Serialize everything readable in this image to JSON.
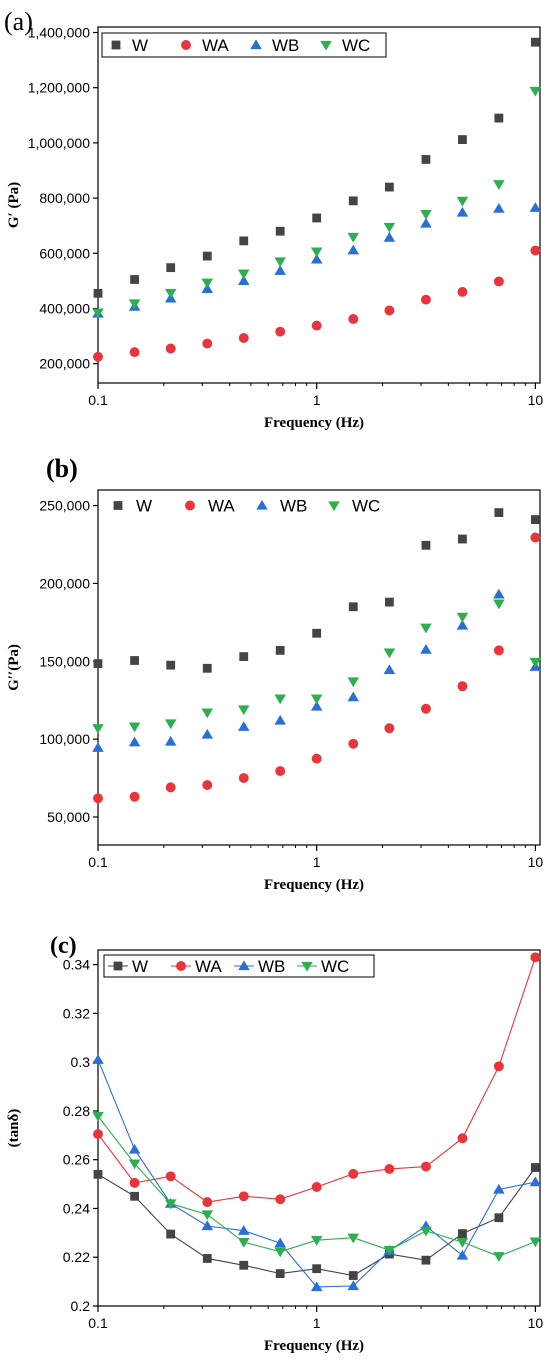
{
  "chart_data": [
    {
      "type": "scatter",
      "panel_label": "(a)",
      "xlabel": "Frequency (Hz)",
      "ylabel": "G′ (Pa)",
      "xscale": "log",
      "xlim": [
        0.1,
        10.5
      ],
      "ylim": [
        130000,
        1420000
      ],
      "xticks": [
        {
          "value": 0.1,
          "label": "0.1"
        },
        {
          "value": 1,
          "label": "1"
        },
        {
          "value": 10,
          "label": "10"
        }
      ],
      "yticks": [
        {
          "value": 200000,
          "label": "200,000"
        },
        {
          "value": 400000,
          "label": "400,000"
        },
        {
          "value": 600000,
          "label": "600,000"
        },
        {
          "value": 800000,
          "label": "800,000"
        },
        {
          "value": 1000000,
          "label": "1,000,000"
        },
        {
          "value": 1200000,
          "label": "1,200,000"
        },
        {
          "value": 1400000,
          "label": "1,400,000"
        }
      ],
      "legend_position": "top",
      "lines": false,
      "x": [
        0.1,
        0.147,
        0.215,
        0.316,
        0.464,
        0.681,
        1.0,
        1.47,
        2.15,
        3.16,
        4.64,
        6.81,
        10.0
      ],
      "series": [
        {
          "name": "W",
          "marker": "square",
          "color": "#444444",
          "values": [
            455000,
            505000,
            548000,
            590000,
            645000,
            680000,
            728000,
            790000,
            840000,
            940000,
            1012000,
            1090000,
            1365000
          ]
        },
        {
          "name": "WA",
          "marker": "circle",
          "color": "#e8343a",
          "values": [
            225000,
            242000,
            255000,
            273000,
            293000,
            316000,
            338000,
            362000,
            393000,
            432000,
            460000,
            498000,
            610000
          ]
        },
        {
          "name": "WB",
          "marker": "triangle-up",
          "color": "#2a6fd6",
          "values": [
            382000,
            407000,
            437000,
            471000,
            500000,
            537000,
            578000,
            611000,
            657000,
            708000,
            748000,
            762000,
            765000
          ]
        },
        {
          "name": "WC",
          "marker": "triangle-down",
          "color": "#2fae4f",
          "values": [
            385000,
            418000,
            456000,
            493000,
            526000,
            570000,
            606000,
            659000,
            695000,
            742000,
            790000,
            850000,
            1188000
          ]
        }
      ]
    },
    {
      "type": "scatter",
      "panel_label": "(b)",
      "xlabel": "Frequency (Hz)",
      "ylabel": "G′′(Pa)",
      "xscale": "log",
      "xlim": [
        0.1,
        10.5
      ],
      "ylim": [
        32000,
        260000
      ],
      "xticks": [
        {
          "value": 0.1,
          "label": "0.1"
        },
        {
          "value": 1,
          "label": "1"
        },
        {
          "value": 10,
          "label": "10"
        }
      ],
      "yticks": [
        {
          "value": 50000,
          "label": "50,000"
        },
        {
          "value": 100000,
          "label": "100,000"
        },
        {
          "value": 150000,
          "label": "150,000"
        },
        {
          "value": 200000,
          "label": "200,000"
        },
        {
          "value": 250000,
          "label": "250,000"
        }
      ],
      "legend_position": "top",
      "lines": false,
      "x": [
        0.1,
        0.147,
        0.215,
        0.316,
        0.464,
        0.681,
        1.0,
        1.47,
        2.15,
        3.16,
        4.64,
        6.81,
        10.0
      ],
      "series": [
        {
          "name": "W",
          "marker": "square",
          "color": "#444444",
          "values": [
            148500,
            150500,
            147500,
            145500,
            153000,
            157000,
            168000,
            185000,
            188000,
            224500,
            228500,
            245500,
            241000
          ]
        },
        {
          "name": "WA",
          "marker": "circle",
          "color": "#e8343a",
          "values": [
            62000,
            63000,
            69000,
            70500,
            75000,
            79500,
            87500,
            97000,
            107000,
            119500,
            134000,
            157000,
            229500
          ]
        },
        {
          "name": "WB",
          "marker": "triangle-up",
          "color": "#2a6fd6",
          "values": [
            94500,
            98000,
            98500,
            103000,
            108000,
            112000,
            121000,
            127000,
            144500,
            157500,
            173000,
            193000,
            146500
          ]
        },
        {
          "name": "WC",
          "marker": "triangle-down",
          "color": "#2fae4f",
          "values": [
            107000,
            108000,
            110000,
            117000,
            119000,
            126000,
            126000,
            137000,
            155500,
            171500,
            178500,
            187000,
            149500
          ]
        }
      ]
    },
    {
      "type": "line",
      "panel_label": "(c)",
      "xlabel": "Frequency (Hz)",
      "ylabel": "(tanδ)",
      "xscale": "log",
      "xlim": [
        0.1,
        10.5
      ],
      "ylim": [
        0.2,
        0.346
      ],
      "xticks": [
        {
          "value": 0.1,
          "label": "0.1"
        },
        {
          "value": 1,
          "label": "1"
        },
        {
          "value": 10,
          "label": "10"
        }
      ],
      "yticks": [
        {
          "value": 0.2,
          "label": "0.2"
        },
        {
          "value": 0.22,
          "label": "0.22"
        },
        {
          "value": 0.24,
          "label": "0.24"
        },
        {
          "value": 0.26,
          "label": "0.26"
        },
        {
          "value": 0.28,
          "label": "0.28"
        },
        {
          "value": 0.3,
          "label": "0.3"
        },
        {
          "value": 0.32,
          "label": "0.32"
        },
        {
          "value": 0.34,
          "label": "0.34"
        }
      ],
      "legend_position": "top",
      "lines": true,
      "x": [
        0.1,
        0.147,
        0.215,
        0.316,
        0.464,
        0.681,
        1.0,
        1.47,
        2.15,
        3.16,
        4.64,
        6.81,
        10.0
      ],
      "series": [
        {
          "name": "W",
          "marker": "square",
          "color": "#444444",
          "values": [
            0.254,
            0.245,
            0.2295,
            0.2195,
            0.2167,
            0.2133,
            0.2153,
            0.2125,
            0.2213,
            0.2188,
            0.2297,
            0.2362,
            0.2568
          ]
        },
        {
          "name": "WA",
          "marker": "circle",
          "color": "#e8343a",
          "values": [
            0.2705,
            0.2505,
            0.2532,
            0.2426,
            0.245,
            0.2438,
            0.2488,
            0.2542,
            0.2562,
            0.2572,
            0.2688,
            0.2983,
            0.343
          ]
        },
        {
          "name": "WB",
          "marker": "triangle-up",
          "color": "#2a6fd6",
          "values": [
            0.301,
            0.2642,
            0.242,
            0.2328,
            0.2309,
            0.2258,
            0.2078,
            0.2082,
            0.2227,
            0.2328,
            0.2207,
            0.2478,
            0.2508
          ]
        },
        {
          "name": "WC",
          "marker": "triangle-down",
          "color": "#2fae4f",
          "values": [
            0.2779,
            0.2584,
            0.242,
            0.2375,
            0.2262,
            0.2223,
            0.227,
            0.228,
            0.2229,
            0.2308,
            0.2262,
            0.2204,
            0.2264
          ]
        }
      ]
    }
  ]
}
